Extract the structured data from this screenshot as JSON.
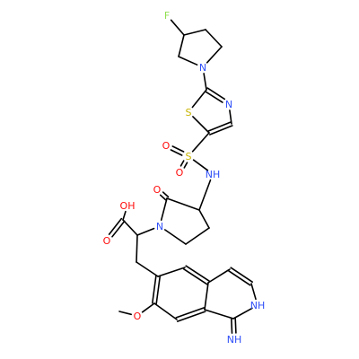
{
  "colors": {
    "carbon_bond": "#000000",
    "N": "#3050F8",
    "O": "#FF0D0D",
    "S": "#C8B400",
    "F": "#90E050",
    "background": "#FFFFFF"
  },
  "atoms": [
    {
      "id": "F1",
      "label": "F",
      "element": "F"
    },
    {
      "id": "N1",
      "label": "N",
      "element": "N"
    },
    {
      "id": "N2",
      "label": "N",
      "element": "N"
    },
    {
      "id": "S1",
      "label": "S",
      "element": "S"
    },
    {
      "id": "S2",
      "label": "S",
      "element": "S"
    },
    {
      "id": "O1",
      "label": "O",
      "element": "O"
    },
    {
      "id": "O2",
      "label": "O",
      "element": "O"
    },
    {
      "id": "N3",
      "label": "NH",
      "element": "N"
    },
    {
      "id": "O3",
      "label": "O",
      "element": "O"
    },
    {
      "id": "N4",
      "label": "N",
      "element": "N"
    },
    {
      "id": "O4",
      "label": "OH",
      "element": "O"
    },
    {
      "id": "O5",
      "label": "O",
      "element": "O"
    },
    {
      "id": "O6",
      "label": "O",
      "element": "O"
    },
    {
      "id": "N5",
      "label": "NH",
      "element": "N"
    },
    {
      "id": "N6",
      "label": "NH",
      "element": "N"
    }
  ]
}
